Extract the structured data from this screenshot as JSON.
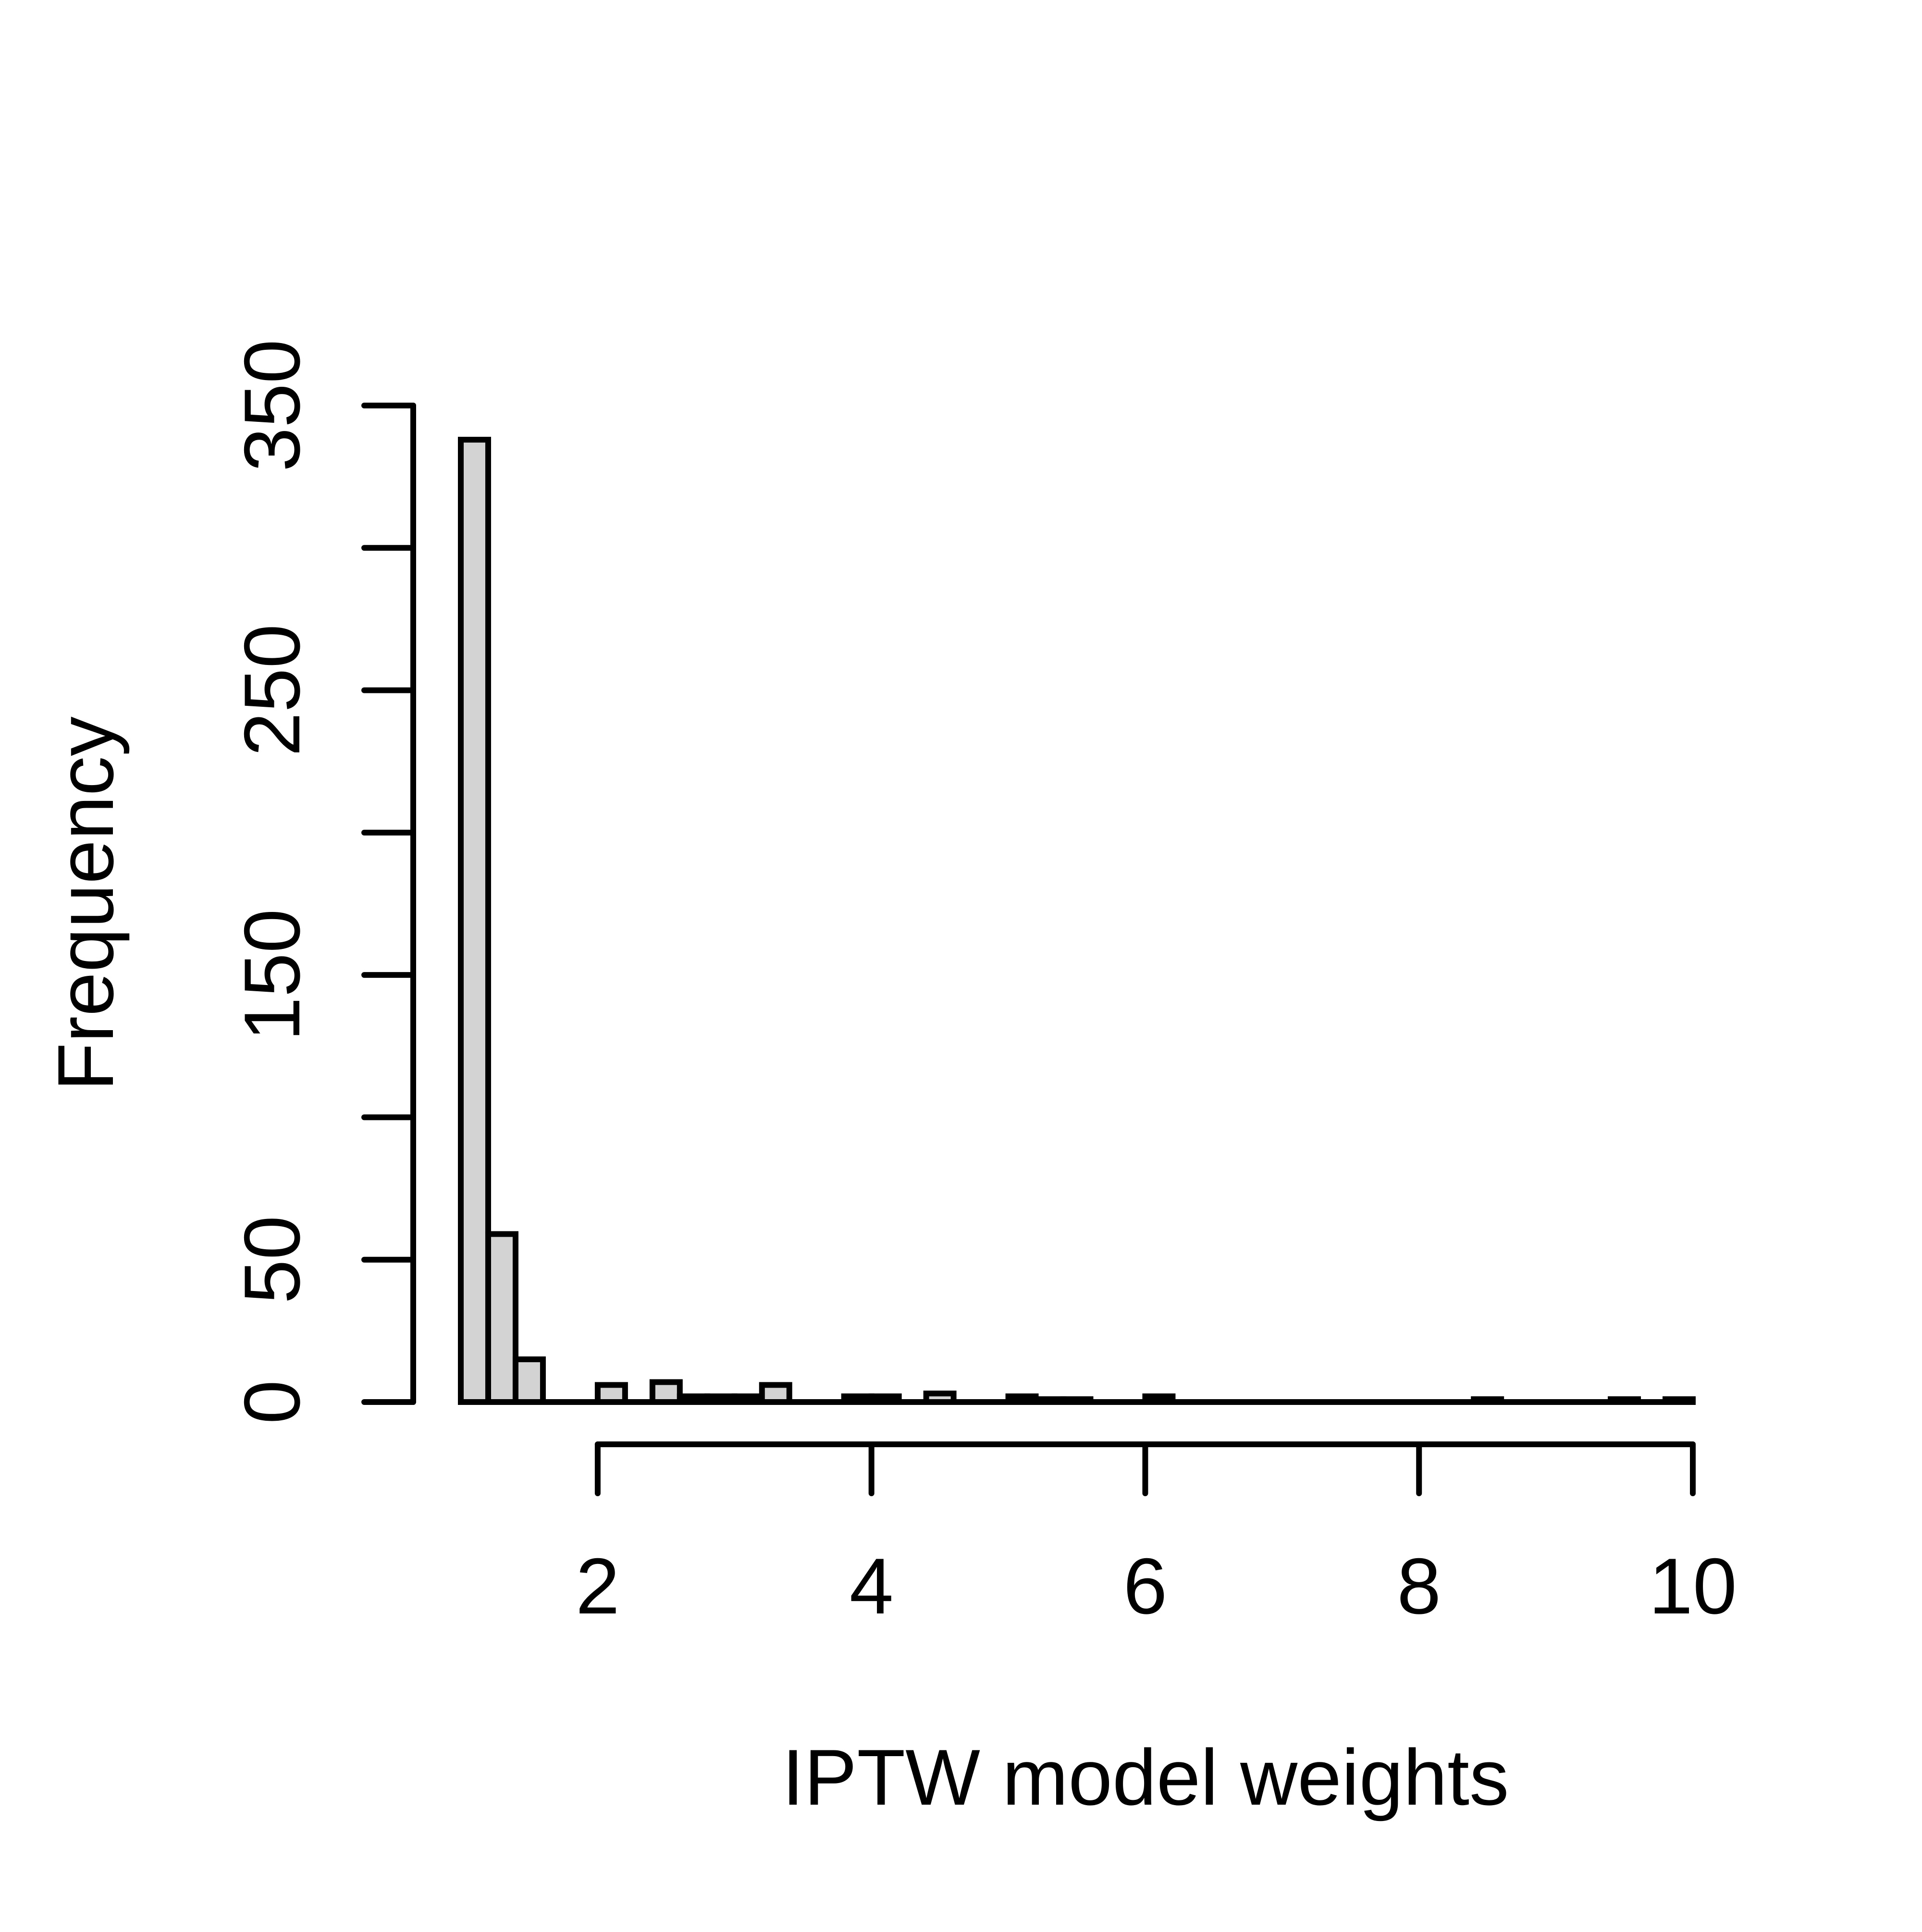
{
  "figure": {
    "background": "#ffffff",
    "foreground": "#000000"
  },
  "chart_data": {
    "type": "bar",
    "subtype": "histogram",
    "title": "",
    "xlabel": "IPTW model weights",
    "ylabel": "Frequency",
    "bin_start": 1.0,
    "bin_width": 0.2,
    "counts": [
      338,
      59,
      15,
      0,
      0,
      6,
      0,
      7,
      2,
      2,
      2,
      6,
      0,
      0,
      2,
      2,
      0,
      3,
      0,
      0,
      2,
      1,
      1,
      0,
      0,
      2,
      0,
      0,
      0,
      0,
      0,
      0,
      0,
      0,
      0,
      0,
      0,
      1,
      0,
      0,
      0,
      0,
      1,
      0,
      1
    ],
    "x": [
      1.0,
      1.2,
      1.4,
      1.6,
      1.8,
      2.0,
      2.2,
      2.4,
      2.6,
      2.8,
      3.0,
      3.2,
      3.4,
      3.6,
      3.8,
      4.0,
      4.2,
      4.4,
      4.6,
      4.8,
      5.0,
      5.2,
      5.4,
      5.6,
      5.8,
      6.0,
      6.2,
      6.4,
      6.6,
      6.8,
      7.0,
      7.2,
      7.4,
      7.6,
      7.8,
      8.0,
      8.2,
      8.4,
      8.6,
      8.8,
      9.0,
      9.2,
      9.4,
      9.6,
      9.8
    ],
    "xlim": [
      1,
      10
    ],
    "ylim": [
      0,
      350
    ],
    "x_ticks": [
      2,
      4,
      6,
      8,
      10
    ],
    "x_tick_labels": [
      "2",
      "4",
      "6",
      "8",
      "10"
    ],
    "y_ticks": [
      0,
      50,
      100,
      150,
      200,
      250,
      300,
      350
    ],
    "y_tick_labels": [
      "0",
      "50",
      "",
      "150",
      "",
      "250",
      "",
      "350"
    ],
    "grid": false,
    "legend_position": "none",
    "bar_fill": "#d3d3d3",
    "bar_border": "#000000",
    "axis_color": "#000000"
  }
}
